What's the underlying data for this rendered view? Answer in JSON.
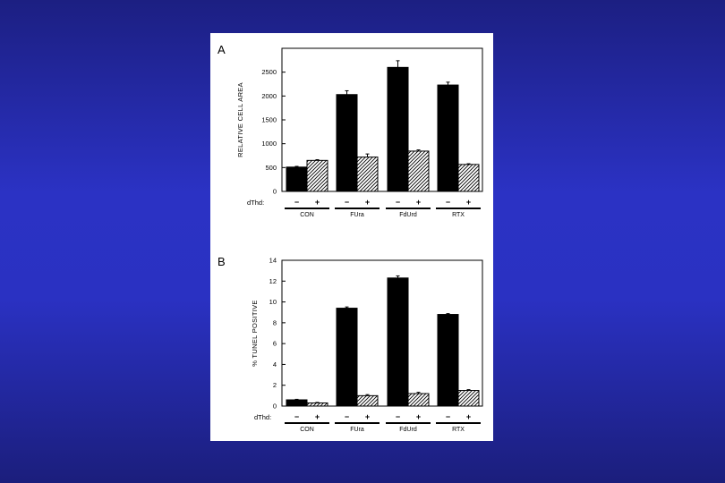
{
  "chart_data": [
    {
      "type": "bar",
      "panel_label": "A",
      "ylabel": "RELATIVE CELL AREA",
      "ylim": [
        0,
        3000
      ],
      "yticks": [
        0,
        500,
        1000,
        1500,
        2000,
        2500
      ],
      "factor_label": "dThd:",
      "factor_levels": [
        "−",
        "+"
      ],
      "categories": [
        "CON",
        "FUra",
        "FdUrd",
        "RTX"
      ],
      "series": [
        {
          "name": "dThd −",
          "fill": "solid",
          "values": [
            510,
            2030,
            2600,
            2230
          ],
          "errors": [
            15,
            80,
            140,
            60
          ]
        },
        {
          "name": "dThd +",
          "fill": "hatched",
          "values": [
            650,
            720,
            845,
            565
          ],
          "errors": [
            15,
            65,
            25,
            15
          ]
        }
      ]
    },
    {
      "type": "bar",
      "panel_label": "B",
      "ylabel": "% TUNEL POSITIVE",
      "ylim": [
        0,
        14
      ],
      "yticks": [
        0,
        2,
        4,
        6,
        8,
        10,
        12,
        14
      ],
      "factor_label": "dThd:",
      "factor_levels": [
        "−",
        "+"
      ],
      "categories": [
        "CON",
        "FUra",
        "FdUrd",
        "RTX"
      ],
      "series": [
        {
          "name": "dThd −",
          "fill": "solid",
          "values": [
            0.6,
            9.4,
            12.3,
            8.8
          ],
          "errors": [
            0.05,
            0.12,
            0.2,
            0.08
          ]
        },
        {
          "name": "dThd +",
          "fill": "hatched",
          "values": [
            0.3,
            1.0,
            1.2,
            1.5
          ],
          "errors": [
            0.05,
            0.1,
            0.12,
            0.08
          ]
        }
      ]
    }
  ],
  "colors": {
    "background_top": "#1c1f82",
    "background_mid": "#2b32c4",
    "panel": "#ffffff",
    "ink": "#000000"
  }
}
